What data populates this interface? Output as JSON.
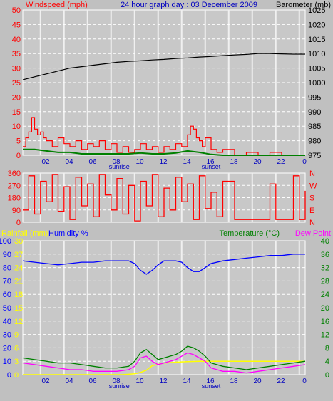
{
  "colors": {
    "bg": "#c0c0c0",
    "plot": "#c8c8c8",
    "grid_v": "#f0f0f0",
    "wind": "#ff0000",
    "avg_wind": "#0000ff",
    "baro": "#000000",
    "direction": "#ff0000",
    "rain": "#ffff00",
    "humidity": "#0000ff",
    "temperature": "#008000",
    "dewpoint": "#ff00ff",
    "hour_labels": "#0000c0",
    "sun_labels": "#0000c0"
  },
  "chart_data": [
    {
      "type": "line",
      "title": "24 hour graph day : 03 December 2009",
      "left_label": "Windspeed (mph)",
      "right_label": "Barometer (mb)",
      "x_tick_labels": [
        "02",
        "04",
        "06",
        "08",
        "10",
        "12",
        "14",
        "16",
        "18",
        "20",
        "22",
        "0"
      ],
      "x_markers": [
        {
          "label": "sunrise",
          "hour": 8.2
        },
        {
          "label": "sunset",
          "hour": 16.0
        }
      ],
      "ylim_left": [
        0,
        50
      ],
      "yticks_left": [
        "0",
        "5",
        "10",
        "15",
        "20",
        "25",
        "30",
        "35",
        "40",
        "45",
        "50"
      ],
      "ylim_right": [
        975,
        1025
      ],
      "yticks_right": [
        "975",
        "980",
        "985",
        "990",
        "995",
        "1000",
        "1005",
        "1010",
        "1015",
        "1020",
        "1025"
      ],
      "series": [
        {
          "axis": "right",
          "x": [
            0,
            1,
            2,
            3,
            4,
            5,
            6,
            7,
            8,
            9,
            10,
            11,
            12,
            13,
            14,
            15,
            16,
            17,
            18,
            19,
            20,
            21,
            22,
            23,
            24
          ],
          "values": [
            1001.0,
            1002.0,
            1003.0,
            1004.0,
            1005.0,
            1005.5,
            1006.0,
            1006.5,
            1007.0,
            1007.3,
            1007.5,
            1007.8,
            1008.0,
            1008.3,
            1008.5,
            1008.8,
            1009.0,
            1009.3,
            1009.5,
            1009.7,
            1010.0,
            1010.0,
            1009.9,
            1009.8,
            1009.8
          ]
        },
        {
          "axis": "left",
          "x": [
            0,
            0.25,
            0.5,
            0.75,
            1,
            1.25,
            1.5,
            1.75,
            2,
            2.5,
            3,
            3.5,
            4,
            4.5,
            5,
            5.5,
            6,
            6.5,
            7,
            7.5,
            8,
            8.5,
            9,
            9.5,
            10,
            10.5,
            11,
            11.5,
            12,
            12.5,
            13,
            13.5,
            14,
            14.25,
            14.5,
            14.75,
            15,
            15.25,
            15.5,
            16,
            16.5,
            17,
            18,
            19,
            20,
            21,
            22,
            23,
            24
          ],
          "values": [
            3,
            6,
            8,
            13,
            9,
            7,
            8,
            6,
            5,
            3,
            6,
            4,
            3,
            5,
            2,
            4,
            3,
            5,
            2,
            4,
            1,
            3,
            1,
            2,
            4,
            2,
            3,
            1,
            3,
            2,
            4,
            3,
            7,
            10,
            9,
            6,
            5,
            3,
            6,
            2,
            1,
            2,
            0,
            1,
            0,
            1,
            0,
            0,
            0
          ]
        },
        {
          "axis": "left",
          "x": [
            0,
            1,
            2,
            3,
            4,
            5,
            6,
            7,
            8,
            9,
            10,
            11,
            12,
            13,
            14,
            15,
            16,
            17,
            18,
            19,
            20,
            21,
            22,
            23,
            24
          ],
          "values": [
            2,
            2,
            1.5,
            1,
            1,
            0.5,
            0.5,
            0.5,
            0.5,
            0.5,
            0.8,
            0.5,
            0.5,
            0.8,
            1.5,
            1,
            0.3,
            0,
            0,
            0,
            0,
            0,
            0,
            0,
            0
          ]
        }
      ]
    },
    {
      "type": "line",
      "ylim": [
        0,
        360
      ],
      "yticks_left": [
        "0",
        "90",
        "180",
        "270",
        "360"
      ],
      "yticks_right": [
        "N",
        "E",
        "S",
        "W",
        "N"
      ],
      "series": [
        {
          "x": [
            0,
            0.5,
            1,
            1.5,
            2,
            2.5,
            3,
            3.5,
            4,
            4.5,
            5,
            5.5,
            6,
            6.5,
            7,
            7.5,
            8,
            8.5,
            9,
            9.5,
            10,
            10.5,
            11,
            11.5,
            12,
            12.5,
            13,
            13.5,
            14,
            14.5,
            15,
            15.5,
            16,
            16.5,
            17,
            17.5,
            18,
            18.5,
            19,
            19.5,
            20,
            20.5,
            21,
            21.5,
            22,
            22.5,
            23,
            23.5,
            24
          ],
          "values": [
            90,
            340,
            60,
            300,
            150,
            350,
            80,
            260,
            20,
            330,
            120,
            280,
            40,
            350,
            200,
            90,
            320,
            60,
            270,
            10,
            300,
            120,
            350,
            40,
            250,
            90,
            330,
            150,
            280,
            20,
            340,
            100,
            220,
            40,
            300,
            300,
            20,
            20,
            20,
            20,
            20,
            20,
            280,
            20,
            20,
            20,
            340,
            20,
            230
          ]
        }
      ]
    },
    {
      "type": "line",
      "left_label": "Rainfall (mm)",
      "left_label2": "Humidity %",
      "right_label": "Temperature (°C)",
      "right_label2": "Dew Point",
      "x_tick_labels": [
        "02",
        "04",
        "06",
        "08",
        "10",
        "12",
        "14",
        "16",
        "18",
        "20",
        "22",
        "0"
      ],
      "x_markers": [
        {
          "label": "sunrise",
          "hour": 8.2
        },
        {
          "label": "sunset",
          "hour": 16.0
        }
      ],
      "ylim_humidity": [
        0,
        100
      ],
      "yticks_humidity": [
        "0",
        "10",
        "20",
        "30",
        "40",
        "50",
        "60",
        "70",
        "80",
        "90",
        "100"
      ],
      "ylim_rain": [
        0,
        30
      ],
      "yticks_rain": [
        "0",
        "3",
        "6",
        "9",
        "12",
        "15",
        "18",
        "21",
        "24",
        "27",
        "30"
      ],
      "ylim_temp": [
        0,
        40
      ],
      "yticks_temp": [
        "0",
        "4",
        "8",
        "12",
        "16",
        "20",
        "24",
        "28",
        "32",
        "36",
        "40"
      ],
      "series": [
        {
          "x": [
            0,
            1,
            2,
            3,
            4,
            5,
            6,
            7,
            8,
            9,
            9.5,
            10,
            10.5,
            11,
            11.5,
            12,
            12.5,
            13,
            13.5,
            14,
            14.5,
            15,
            15.5,
            16,
            17,
            18,
            19,
            20,
            21,
            22,
            23,
            24
          ],
          "values": [
            85,
            84,
            83,
            82,
            83,
            84,
            84,
            85,
            85,
            85,
            83,
            78,
            75,
            78,
            82,
            85,
            85,
            85,
            84,
            80,
            77,
            77,
            80,
            83,
            85,
            86,
            87,
            88,
            89,
            89,
            90,
            90
          ]
        },
        {
          "x": [
            0,
            1,
            2,
            3,
            4,
            5,
            6,
            7,
            8,
            9,
            9.5,
            10,
            10.5,
            11,
            11.5,
            12,
            12.5,
            13,
            13.5,
            14,
            14.5,
            15,
            15.5,
            16,
            17,
            18,
            19,
            20,
            21,
            22,
            23,
            24
          ],
          "values": [
            5,
            4.5,
            4,
            3.5,
            3.5,
            3,
            2.5,
            2,
            2,
            2.5,
            4,
            6.5,
            7.5,
            6,
            4.5,
            5,
            5.5,
            6,
            7,
            8.5,
            8,
            7,
            5.5,
            3.5,
            2.5,
            2,
            1.5,
            2,
            2.5,
            3,
            3.5,
            4
          ]
        },
        {
          "x": [
            0,
            1,
            2,
            3,
            4,
            5,
            6,
            7,
            8,
            9,
            9.5,
            10,
            10.5,
            11,
            11.5,
            12,
            12.5,
            13,
            13.5,
            14,
            14.5,
            15,
            15.5,
            16,
            17,
            18,
            19,
            20,
            21,
            22,
            23,
            24
          ],
          "values": [
            3.5,
            3,
            2.5,
            2,
            1.5,
            1.5,
            1,
            1,
            1,
            1.5,
            2.5,
            5,
            5.5,
            4,
            3,
            3.5,
            4,
            4.5,
            5.5,
            6.5,
            6,
            5,
            4,
            2,
            1,
            1,
            0.5,
            1,
            1.5,
            2,
            2.5,
            3
          ]
        },
        {
          "x": [
            0,
            8.5,
            9,
            9.5,
            10,
            10.5,
            11,
            12,
            13,
            14,
            15,
            16,
            17,
            18,
            19,
            20,
            21,
            22,
            23,
            24
          ],
          "values": [
            0,
            0,
            0.1,
            0.2,
            0.5,
            1,
            2,
            2.6,
            2.8,
            2.9,
            3,
            3,
            3,
            3,
            3,
            3,
            3,
            3,
            3,
            3
          ]
        }
      ]
    }
  ]
}
